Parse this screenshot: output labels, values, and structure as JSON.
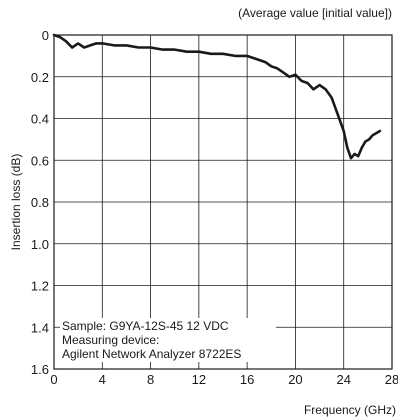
{
  "chart_data": {
    "type": "line",
    "note": "(Average value [initial value])",
    "xlabel": "Frequency (GHz)",
    "ylabel": "Insertion loss (dB)",
    "xlim": [
      0,
      28
    ],
    "ylim": [
      0,
      1.6
    ],
    "y_inverted": true,
    "grid": true,
    "x_ticks": [
      0,
      4,
      8,
      12,
      16,
      20,
      24,
      28
    ],
    "y_ticks": [
      0,
      0.2,
      0.4,
      0.6,
      0.8,
      1.0,
      1.2,
      1.4,
      1.6
    ],
    "x_tick_labels": [
      "0",
      "4",
      "8",
      "12",
      "16",
      "20",
      "24",
      "28"
    ],
    "y_tick_labels": [
      "0",
      "0.2",
      "0.4",
      "0.6",
      "0.8",
      "1.0",
      "1.2",
      "1.4",
      "1.6"
    ],
    "annotation_lines": [
      "Sample: G9YA-12S-45 12 VDC",
      "Measuring device:",
      "Agilent Network Analyzer 8722ES"
    ],
    "series": [
      {
        "x": [
          0,
          0.5,
          1,
          1.5,
          2,
          2.5,
          3,
          3.5,
          4,
          5,
          6,
          7,
          8,
          9,
          10,
          11,
          12,
          13,
          14,
          15,
          16,
          16.5,
          17,
          17.5,
          18,
          18.5,
          19,
          19.5,
          20,
          20.5,
          21,
          21.5,
          22,
          22.5,
          23,
          23.5,
          24,
          24.3,
          24.6,
          24.9,
          25.2,
          25.5,
          25.8,
          26.1,
          26.4,
          26.7,
          27
        ],
        "y": [
          0.0,
          0.01,
          0.03,
          0.06,
          0.04,
          0.06,
          0.05,
          0.04,
          0.04,
          0.05,
          0.05,
          0.06,
          0.06,
          0.07,
          0.07,
          0.08,
          0.08,
          0.09,
          0.09,
          0.1,
          0.1,
          0.11,
          0.12,
          0.13,
          0.15,
          0.16,
          0.18,
          0.2,
          0.19,
          0.22,
          0.23,
          0.26,
          0.24,
          0.26,
          0.3,
          0.38,
          0.46,
          0.54,
          0.59,
          0.57,
          0.58,
          0.54,
          0.51,
          0.5,
          0.48,
          0.47,
          0.46
        ]
      }
    ]
  }
}
